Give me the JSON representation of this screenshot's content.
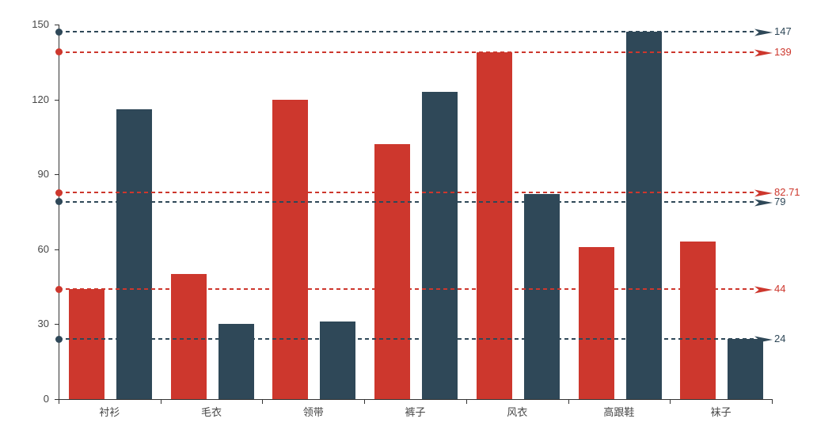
{
  "chart_data": {
    "type": "bar",
    "title": "",
    "xlabel": "",
    "ylabel": "",
    "categories": [
      "衬衫",
      "毛衣",
      "领带",
      "裤子",
      "风衣",
      "高跟鞋",
      "袜子"
    ],
    "series": [
      {
        "id": "series-1",
        "color": "#cd372d",
        "values": [
          44,
          50,
          120,
          102,
          139,
          61,
          63
        ],
        "marklines": [
          {
            "value": 139,
            "label": "139"
          },
          {
            "value": 82.71,
            "label": "82.71"
          },
          {
            "value": 44,
            "label": "44"
          }
        ]
      },
      {
        "id": "series-2",
        "color": "#2f4858",
        "values": [
          116,
          30,
          31,
          123,
          82,
          147,
          24
        ],
        "marklines": [
          {
            "value": 147,
            "label": "147"
          },
          {
            "value": 79,
            "label": "79"
          },
          {
            "value": 24,
            "label": "24"
          }
        ]
      }
    ],
    "ylim": [
      0,
      150
    ],
    "y_ticks": [
      0,
      30,
      60,
      90,
      120,
      150
    ],
    "grid": false,
    "legend_position": "none",
    "axis_color": "#333333",
    "axis_label_color": "#464646"
  }
}
